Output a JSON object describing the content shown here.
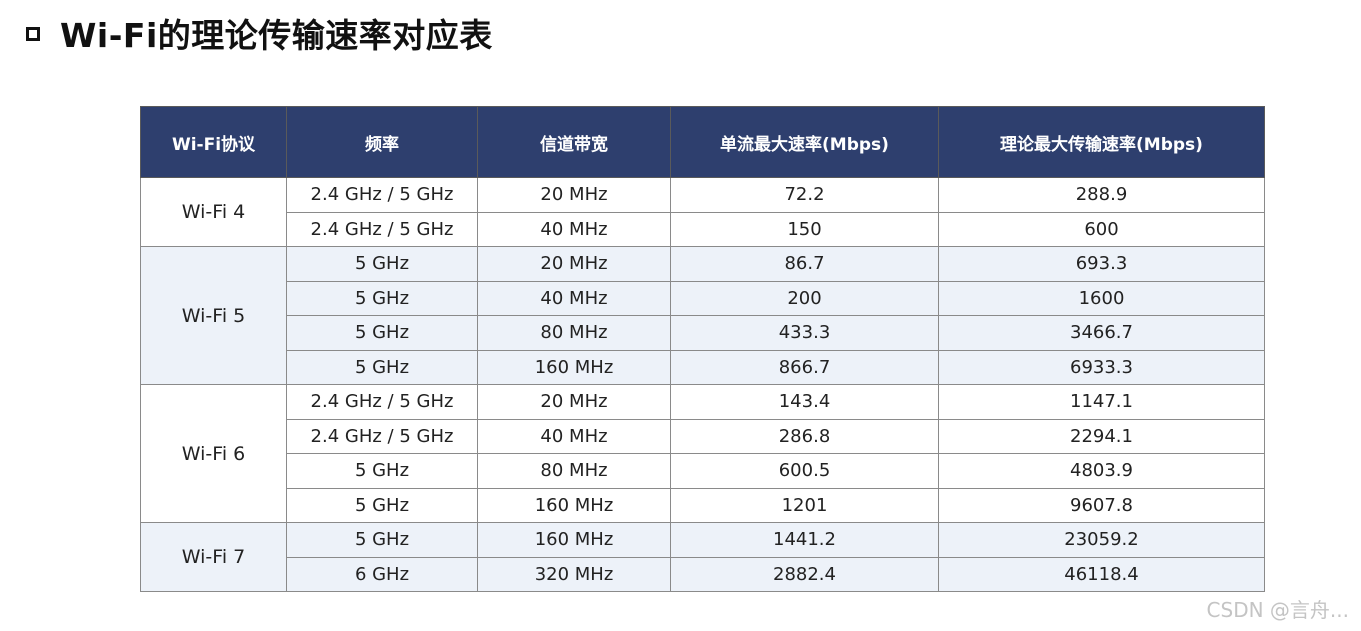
{
  "title": "Wi-Fi的理论传输速率对应表",
  "table": {
    "headers": [
      "Wi-Fi协议",
      "频率",
      "信道带宽",
      "单流最大速率(Mbps)",
      "理论最大传输速率(Mbps)"
    ],
    "groups": [
      {
        "protocol": "Wi-Fi 4",
        "rows": [
          [
            "2.4 GHz / 5 GHz",
            "20 MHz",
            "72.2",
            "288.9"
          ],
          [
            "2.4 GHz / 5 GHz",
            "40 MHz",
            "150",
            "600"
          ]
        ]
      },
      {
        "protocol": "Wi-Fi 5",
        "rows": [
          [
            "5 GHz",
            "20 MHz",
            "86.7",
            "693.3"
          ],
          [
            "5 GHz",
            "40 MHz",
            "200",
            "1600"
          ],
          [
            "5 GHz",
            "80 MHz",
            "433.3",
            "3466.7"
          ],
          [
            "5 GHz",
            "160 MHz",
            "866.7",
            "6933.3"
          ]
        ]
      },
      {
        "protocol": "Wi-Fi 6",
        "rows": [
          [
            "2.4 GHz / 5 GHz",
            "20 MHz",
            "143.4",
            "1147.1"
          ],
          [
            "2.4 GHz / 5 GHz",
            "40 MHz",
            "286.8",
            "2294.1"
          ],
          [
            "5 GHz",
            "80 MHz",
            "600.5",
            "4803.9"
          ],
          [
            "5 GHz",
            "160 MHz",
            "1201",
            "9607.8"
          ]
        ]
      },
      {
        "protocol": "Wi-Fi 7",
        "rows": [
          [
            "5 GHz",
            "160 MHz",
            "1441.2",
            "23059.2"
          ],
          [
            "6 GHz",
            "320 MHz",
            "2882.4",
            "46118.4"
          ]
        ]
      }
    ]
  },
  "watermark": "CSDN @言舟..."
}
